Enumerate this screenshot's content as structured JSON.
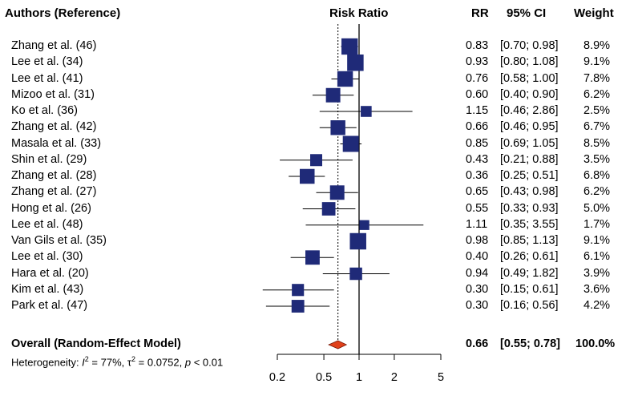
{
  "headers": {
    "authors": "Authors (Reference)",
    "plot": "Risk Ratio",
    "rr": "RR",
    "ci": "95% CI",
    "weight": "Weight"
  },
  "chart_data": {
    "type": "forest",
    "x_scale": "log",
    "xlim": [
      0.2,
      5
    ],
    "null_line": 1,
    "pooled_line": 0.66,
    "x_ticks": [
      "0.2",
      "0.5",
      "1",
      "2",
      "5"
    ],
    "x_tick_values": [
      0.2,
      0.5,
      1,
      2,
      5
    ],
    "marker_color": "#1f2a78",
    "diamond_color": "#e0401a",
    "studies": [
      {
        "author": "Zhang  et al. (46)",
        "rr": 0.83,
        "lo": 0.7,
        "hi": 0.98,
        "rr_text": "0.83",
        "ci_text": "[0.70; 0.98]",
        "weight": 8.9,
        "weight_text": "8.9%"
      },
      {
        "author": "Lee  et al. (34)",
        "rr": 0.93,
        "lo": 0.8,
        "hi": 1.08,
        "rr_text": "0.93",
        "ci_text": "[0.80; 1.08]",
        "weight": 9.1,
        "weight_text": "9.1%"
      },
      {
        "author": "Lee  et al. (41)",
        "rr": 0.76,
        "lo": 0.58,
        "hi": 1.0,
        "rr_text": "0.76",
        "ci_text": "[0.58; 1.00]",
        "weight": 7.8,
        "weight_text": "7.8%"
      },
      {
        "author": "Mizoo et al. (31)",
        "rr": 0.6,
        "lo": 0.4,
        "hi": 0.9,
        "rr_text": "0.60",
        "ci_text": "[0.40; 0.90]",
        "weight": 6.2,
        "weight_text": "6.2%"
      },
      {
        "author": "Ko  et al. (36)",
        "rr": 1.15,
        "lo": 0.46,
        "hi": 2.86,
        "rr_text": "1.15",
        "ci_text": "[0.46; 2.86]",
        "weight": 2.5,
        "weight_text": "2.5%"
      },
      {
        "author": "Zhang  et al. (42)",
        "rr": 0.66,
        "lo": 0.46,
        "hi": 0.95,
        "rr_text": "0.66",
        "ci_text": "[0.46; 0.95]",
        "weight": 6.7,
        "weight_text": "6.7%"
      },
      {
        "author": "Masala  et al. (33)",
        "rr": 0.85,
        "lo": 0.69,
        "hi": 1.05,
        "rr_text": "0.85",
        "ci_text": "[0.69; 1.05]",
        "weight": 8.5,
        "weight_text": "8.5%"
      },
      {
        "author": "Shin  et al. (29)",
        "rr": 0.43,
        "lo": 0.21,
        "hi": 0.88,
        "rr_text": "0.43",
        "ci_text": "[0.21; 0.88]",
        "weight": 3.5,
        "weight_text": "3.5%"
      },
      {
        "author": "Zhang  et al. (28)",
        "rr": 0.36,
        "lo": 0.25,
        "hi": 0.51,
        "rr_text": "0.36",
        "ci_text": "[0.25; 0.51]",
        "weight": 6.8,
        "weight_text": "6.8%"
      },
      {
        "author": "Zhang  et al. (27)",
        "rr": 0.65,
        "lo": 0.43,
        "hi": 0.98,
        "rr_text": "0.65",
        "ci_text": "[0.43; 0.98]",
        "weight": 6.2,
        "weight_text": "6.2%"
      },
      {
        "author": "Hong  et al. (26)",
        "rr": 0.55,
        "lo": 0.33,
        "hi": 0.93,
        "rr_text": "0.55",
        "ci_text": "[0.33; 0.93]",
        "weight": 5.0,
        "weight_text": "5.0%"
      },
      {
        "author": "Lee  et al. (48)",
        "rr": 1.11,
        "lo": 0.35,
        "hi": 3.55,
        "rr_text": "1.11",
        "ci_text": "[0.35; 3.55]",
        "weight": 1.7,
        "weight_text": "1.7%"
      },
      {
        "author": "Van Gils  et al. (35)",
        "rr": 0.98,
        "lo": 0.85,
        "hi": 1.13,
        "rr_text": "0.98",
        "ci_text": "[0.85; 1.13]",
        "weight": 9.1,
        "weight_text": "9.1%"
      },
      {
        "author": "Lee  et al. (30)",
        "rr": 0.4,
        "lo": 0.26,
        "hi": 0.61,
        "rr_text": "0.40",
        "ci_text": "[0.26; 0.61]",
        "weight": 6.1,
        "weight_text": "6.1%"
      },
      {
        "author": "Hara  et al. (20)",
        "rr": 0.94,
        "lo": 0.49,
        "hi": 1.82,
        "rr_text": "0.94",
        "ci_text": "[0.49; 1.82]",
        "weight": 3.9,
        "weight_text": "3.9%"
      },
      {
        "author": "Kim  et al. (43)",
        "rr": 0.3,
        "lo": 0.15,
        "hi": 0.61,
        "rr_text": "0.30",
        "ci_text": "[0.15; 0.61]",
        "weight": 3.6,
        "weight_text": "3.6%"
      },
      {
        "author": "Park  et al. (47)",
        "rr": 0.3,
        "lo": 0.16,
        "hi": 0.56,
        "rr_text": "0.30",
        "ci_text": "[0.16; 0.56]",
        "weight": 4.2,
        "weight_text": "4.2%"
      }
    ],
    "overall": {
      "label": "Overall (Random-Effect Model)",
      "rr": 0.66,
      "lo": 0.55,
      "hi": 0.78,
      "rr_text": "0.66",
      "ci_text": "[0.55; 0.78]",
      "weight_text": "100.0%"
    },
    "heterogeneity": {
      "prefix": "Heterogeneity: ",
      "i2_symbol": "I",
      "i2_sup": "2",
      "i2_value": " = 77%, ",
      "tau2_symbol": "τ",
      "tau2_sup": "2",
      "tau2_value": " = 0.0752, ",
      "p_symbol": "p",
      "p_value": " < 0.01"
    }
  }
}
